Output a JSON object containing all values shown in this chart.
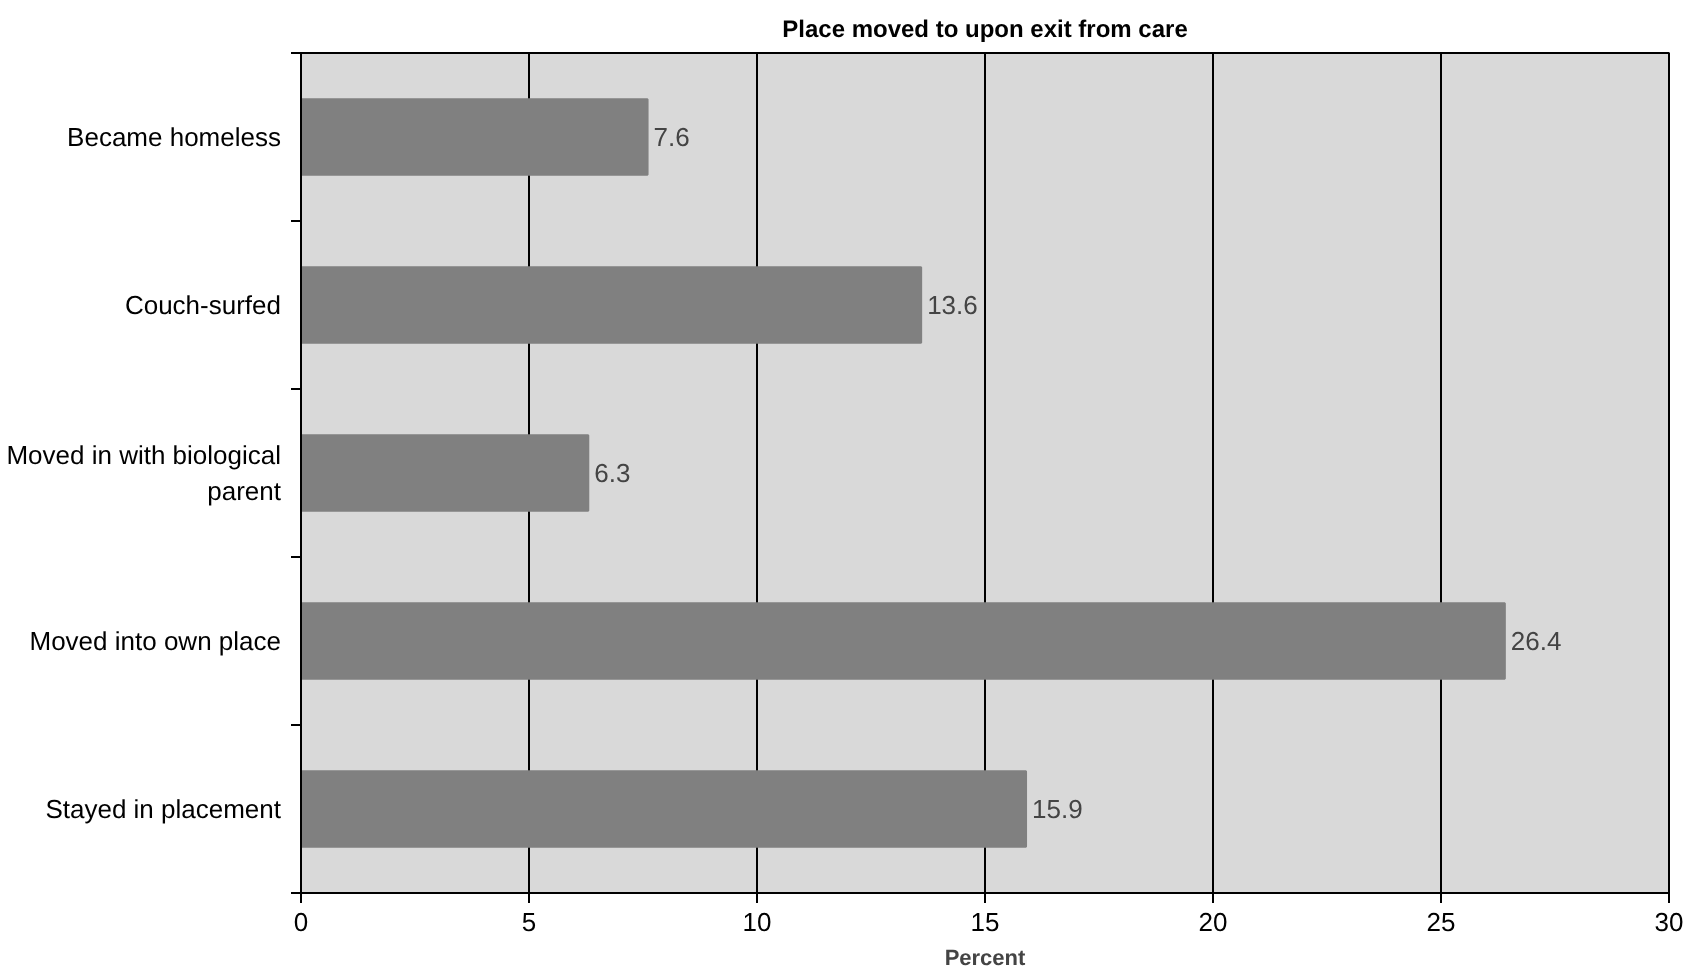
{
  "chart_data": {
    "type": "bar",
    "orientation": "horizontal",
    "title": "Place moved to upon exit from care",
    "xlabel": "Percent",
    "categories": [
      "Became homeless",
      "Couch-surfed",
      "Moved in with biological\nparent",
      "Moved into own place",
      "Stayed in placement"
    ],
    "values": [
      7.6,
      13.6,
      6.3,
      26.4,
      15.9
    ],
    "color": "#808080",
    "xlim": [
      0,
      30
    ],
    "xticks": [
      0,
      5,
      10,
      15,
      20,
      25,
      30
    ],
    "grid": "x",
    "data_labels": true,
    "legend": false
  }
}
